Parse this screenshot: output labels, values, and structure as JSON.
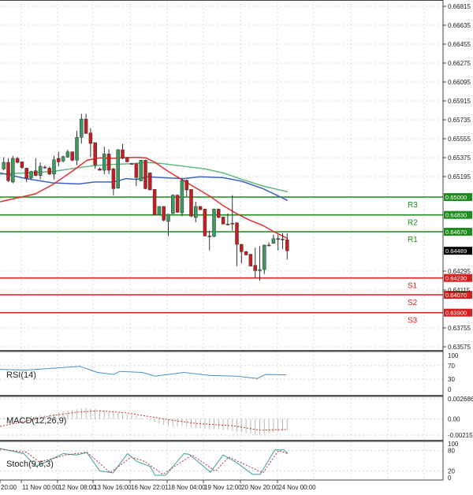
{
  "chart_data": {
    "type": "candlestick",
    "price_axis": {
      "range": [
        0.63575,
        0.66815
      ],
      "ticks": [
        "0.66815",
        "0.66635",
        "0.66455",
        "0.66275",
        "0.66095",
        "0.65915",
        "0.65735",
        "0.65555",
        "0.65375",
        "0.65195",
        "0.64295",
        "0.64115",
        "0.63755",
        "0.63575"
      ]
    },
    "time_labels": [
      "20:00",
      "11 Nov 00:00",
      "12 Nov 08:00",
      "13 Nov 16:00",
      "16 Nov 22:01",
      "18 Nov 04:00",
      "19 Nov 12:00",
      "20 Nov 20:00",
      "24 Nov 00:00"
    ],
    "current_price": {
      "value": 0.64489,
      "label": "0.64489"
    },
    "colors": {
      "up": "#3c9a5f",
      "down": "#c41e1e",
      "ma_fast": "#e03030",
      "ma_mid": "#60b880",
      "ma_slow": "#4060c0",
      "resistance": "#1e8c1e",
      "support": "#d42020"
    },
    "levels": [
      {
        "name": "R3",
        "value": 0.65,
        "label": "0.65000",
        "kind": "resistance"
      },
      {
        "name": "R2",
        "value": 0.6483,
        "label": "0.64830",
        "kind": "resistance"
      },
      {
        "name": "R1",
        "value": 0.6467,
        "label": "0.64670",
        "kind": "resistance"
      },
      {
        "name": "S1",
        "value": 0.6423,
        "label": "0.64230",
        "kind": "support"
      },
      {
        "name": "S2",
        "value": 0.6407,
        "label": "0.64070",
        "kind": "support"
      },
      {
        "name": "S3",
        "value": 0.639,
        "label": "0.63900",
        "kind": "support"
      }
    ],
    "candles": [
      [
        0.65268,
        0.6538,
        0.65255,
        0.6533
      ],
      [
        0.6533,
        0.65368,
        0.65143,
        0.65155
      ],
      [
        0.65143,
        0.65393,
        0.6513,
        0.65368
      ],
      [
        0.65368,
        0.6538,
        0.6532,
        0.6533
      ],
      [
        0.65335,
        0.6534,
        0.6527,
        0.6528
      ],
      [
        0.65275,
        0.6528,
        0.65143,
        0.6518
      ],
      [
        0.6518,
        0.6525,
        0.6517,
        0.65243
      ],
      [
        0.6525,
        0.65368,
        0.652,
        0.65205
      ],
      [
        0.65205,
        0.6533,
        0.65168,
        0.65293
      ],
      [
        0.65285,
        0.653,
        0.6527,
        0.65283
      ],
      [
        0.65275,
        0.6529,
        0.6521,
        0.65218
      ],
      [
        0.65218,
        0.65393,
        0.65168,
        0.65355
      ],
      [
        0.65368,
        0.6543,
        0.65293,
        0.65335
      ],
      [
        0.65343,
        0.65393,
        0.6533,
        0.65385
      ],
      [
        0.6538,
        0.6545,
        0.65375,
        0.6543
      ],
      [
        0.6543,
        0.65435,
        0.6534,
        0.6535
      ],
      [
        0.6535,
        0.6563,
        0.65305,
        0.65568
      ],
      [
        0.65568,
        0.65792,
        0.6551,
        0.65742
      ],
      [
        0.65742,
        0.65792,
        0.656,
        0.65605
      ],
      [
        0.6561,
        0.65655,
        0.6538,
        0.6551
      ],
      [
        0.65518,
        0.65518,
        0.65268,
        0.65305
      ],
      [
        0.65268,
        0.6528,
        0.6525,
        0.65255
      ],
      [
        0.65255,
        0.6548,
        0.65218,
        0.6541
      ],
      [
        0.6541,
        0.65455,
        0.65218,
        0.65255
      ],
      [
        0.65268,
        0.6528,
        0.65018,
        0.6508
      ],
      [
        0.65085,
        0.65455,
        0.6508,
        0.6545
      ],
      [
        0.6545,
        0.65505,
        0.6536,
        0.65368
      ],
      [
        0.65375,
        0.6538,
        0.6533,
        0.65335
      ],
      [
        0.65318,
        0.65325,
        0.6531,
        0.65316
      ],
      [
        0.65318,
        0.6532,
        0.65105,
        0.65185
      ],
      [
        0.65155,
        0.65355,
        0.6515,
        0.6535
      ],
      [
        0.6535,
        0.65355,
        0.65075,
        0.6508
      ],
      [
        0.6523,
        0.65235,
        0.65065,
        0.65068
      ],
      [
        0.65073,
        0.65075,
        0.64825,
        0.6483
      ],
      [
        0.6483,
        0.64915,
        0.64825,
        0.6491
      ],
      [
        0.6491,
        0.64915,
        0.64768,
        0.6478
      ],
      [
        0.64768,
        0.6484,
        0.6463,
        0.64835
      ],
      [
        0.64843,
        0.65025,
        0.6484,
        0.65018
      ],
      [
        0.65018,
        0.65025,
        0.6485,
        0.64855
      ],
      [
        0.6485,
        0.6518,
        0.64818,
        0.6516
      ],
      [
        0.6516,
        0.65165,
        0.65005,
        0.65068
      ],
      [
        0.65073,
        0.65075,
        0.6481,
        0.64818
      ],
      [
        0.64805,
        0.64955,
        0.6476,
        0.6491
      ],
      [
        0.6491,
        0.64915,
        0.64875,
        0.6488
      ],
      [
        0.64885,
        0.6489,
        0.64625,
        0.6463
      ],
      [
        0.6463,
        0.6468,
        0.64493,
        0.64628
      ],
      [
        0.64625,
        0.6489,
        0.64618,
        0.64885
      ],
      [
        0.64885,
        0.6489,
        0.648,
        0.64805
      ],
      [
        0.6481,
        0.64815,
        0.6474,
        0.64743
      ],
      [
        0.64743,
        0.64843,
        0.6473,
        0.64741
      ],
      [
        0.6475,
        0.65018,
        0.6468,
        0.64748
      ],
      [
        0.64755,
        0.6476,
        0.64343,
        0.6455
      ],
      [
        0.6455,
        0.64555,
        0.64368,
        0.6448
      ],
      [
        0.6448,
        0.64485,
        0.64445,
        0.6445
      ],
      [
        0.64455,
        0.6446,
        0.6434,
        0.64343
      ],
      [
        0.6435,
        0.64518,
        0.6423,
        0.643
      ],
      [
        0.643,
        0.6453,
        0.64205,
        0.6431
      ],
      [
        0.6431,
        0.64548,
        0.64268,
        0.64543
      ],
      [
        0.64543,
        0.64568,
        0.6453,
        0.64541
      ],
      [
        0.6456,
        0.64643,
        0.64555,
        0.64605
      ],
      [
        0.64605,
        0.64643,
        0.64493,
        0.64603
      ],
      [
        0.646,
        0.64655,
        0.64505,
        0.64598
      ],
      [
        0.64593,
        0.64655,
        0.64405,
        0.64489
      ]
    ],
    "moving_averages": {
      "fast": [
        [
          -0.8,
          0.64955
        ],
        [
          6.9,
          0.6503
        ],
        [
          10.7,
          0.65118
        ],
        [
          15.3,
          0.65255
        ],
        [
          18.2,
          0.6535
        ],
        [
          21,
          0.65373
        ],
        [
          23.9,
          0.65368
        ],
        [
          26.2,
          0.65375
        ],
        [
          29.1,
          0.65378
        ],
        [
          31.1,
          0.65373
        ],
        [
          33.1,
          0.6533
        ],
        [
          36,
          0.65243
        ],
        [
          39.4,
          0.65155
        ],
        [
          42.3,
          0.6508
        ],
        [
          45.2,
          0.65005
        ],
        [
          48,
          0.64918
        ],
        [
          50.9,
          0.64843
        ],
        [
          53.8,
          0.6478
        ],
        [
          56.7,
          0.6473
        ],
        [
          59,
          0.64673
        ],
        [
          62.1,
          0.64605
        ]
      ],
      "mid": [
        [
          -0.8,
          0.65218
        ],
        [
          4.9,
          0.6523
        ],
        [
          10.7,
          0.65243
        ],
        [
          16.4,
          0.6528
        ],
        [
          19.9,
          0.653
        ],
        [
          23.9,
          0.6531
        ],
        [
          27.9,
          0.65318
        ],
        [
          31.4,
          0.6533
        ],
        [
          34.8,
          0.65318
        ],
        [
          39.4,
          0.65293
        ],
        [
          44,
          0.65268
        ],
        [
          48,
          0.6523
        ],
        [
          52.1,
          0.65168
        ],
        [
          56.7,
          0.65105
        ],
        [
          62.1,
          0.6505
        ]
      ],
      "slow": [
        [
          -0.8,
          0.6523
        ],
        [
          4.9,
          0.65175
        ],
        [
          10.7,
          0.65135
        ],
        [
          16.4,
          0.65125
        ],
        [
          19.9,
          0.65143
        ],
        [
          23.9,
          0.65143
        ],
        [
          26.8,
          0.65175
        ],
        [
          29.1,
          0.65168
        ],
        [
          31.4,
          0.65193
        ],
        [
          34.8,
          0.65185
        ],
        [
          39.4,
          0.65175
        ],
        [
          42.9,
          0.65193
        ],
        [
          48,
          0.65185
        ],
        [
          52.1,
          0.6515
        ],
        [
          56.7,
          0.6508
        ],
        [
          62.1,
          0.64968
        ]
      ]
    },
    "rsi": {
      "label": "RSI(14)",
      "ticks": [
        "100",
        "70",
        "30",
        "0"
      ],
      "values": [
        [
          -0.8,
          59
        ],
        [
          5,
          57
        ],
        [
          16.7,
          68
        ],
        [
          20.5,
          50
        ],
        [
          24,
          44
        ],
        [
          25.4,
          53
        ],
        [
          30.3,
          50
        ],
        [
          33.1,
          39
        ],
        [
          39.4,
          50
        ],
        [
          45.2,
          41
        ],
        [
          51,
          39
        ],
        [
          55.5,
          32
        ],
        [
          57.2,
          44
        ],
        [
          61.8,
          43
        ]
      ]
    },
    "macd": {
      "label": "MACD(12,26,9)",
      "ticks": [
        "0.002686",
        "0.00",
        "-0.002157"
      ],
      "range": [
        -0.002157,
        0.002686
      ],
      "histogram": [
        0.0002,
        0.0002,
        0.0003,
        0.0003,
        0.0003,
        0.0003,
        0.0004,
        0.0004,
        0.0005,
        0.0005,
        0.0006,
        0.0007,
        0.0009,
        0.001,
        0.0011,
        0.0012,
        0.0013,
        0.0014,
        0.0015,
        0.0014,
        0.0013,
        0.0012,
        0.0011,
        0.001,
        0.0009,
        0.0008,
        0.0007,
        0.0006,
        0.0005,
        0.0004,
        0.0002,
        0.0,
        -0.0002,
        -0.0004,
        -0.0006,
        -0.0008,
        -0.0009,
        -0.001,
        -0.001,
        -0.0009,
        -0.001,
        -0.0011,
        -0.0012,
        -0.0012,
        -0.0013,
        -0.0014,
        -0.0014,
        -0.0014,
        -0.0015,
        -0.0015,
        -0.0016,
        -0.0017,
        -0.0018,
        -0.0019,
        -0.002,
        -0.0021,
        -0.0021,
        -0.002,
        -0.0019,
        -0.0018,
        -0.0017,
        -0.0016,
        -0.0015
      ],
      "signal": [
        [
          -0.8,
          -0.001
        ],
        [
          10,
          0.0004
        ],
        [
          16,
          0.0009
        ],
        [
          21,
          0.0011
        ],
        [
          27,
          0.0008
        ],
        [
          35,
          0.0
        ],
        [
          42,
          -0.0006
        ],
        [
          50,
          -0.0009
        ],
        [
          56,
          -0.0015
        ],
        [
          62,
          -0.0014
        ]
      ]
    },
    "stochastic": {
      "label": "Stoch(9,6,3)",
      "ticks": [
        "100",
        "80",
        "20",
        "0"
      ],
      "main": [
        [
          -0.8,
          86
        ],
        [
          4.4,
          71
        ],
        [
          7,
          33
        ],
        [
          9.5,
          48
        ],
        [
          13,
          71
        ],
        [
          15.9,
          67
        ],
        [
          18.2,
          74
        ],
        [
          21,
          20
        ],
        [
          23.9,
          14
        ],
        [
          27.1,
          71
        ],
        [
          29.1,
          48
        ],
        [
          32,
          33
        ],
        [
          33.1,
          7
        ],
        [
          35.4,
          7
        ],
        [
          39.4,
          71
        ],
        [
          40.6,
          69
        ],
        [
          45.2,
          16
        ],
        [
          48,
          67
        ],
        [
          50.9,
          45
        ],
        [
          54.4,
          10
        ],
        [
          56.1,
          10
        ],
        [
          59.3,
          82
        ],
        [
          61.3,
          82
        ],
        [
          62.1,
          71
        ]
      ],
      "signal": [
        [
          -0.8,
          84
        ],
        [
          5,
          75
        ],
        [
          7.8,
          46
        ],
        [
          13.6,
          67
        ],
        [
          18.2,
          75
        ],
        [
          23.3,
          15
        ],
        [
          27.9,
          61
        ],
        [
          30.8,
          48
        ],
        [
          34.8,
          10
        ],
        [
          41.2,
          67
        ],
        [
          46.3,
          19
        ],
        [
          49.2,
          61
        ],
        [
          56.7,
          14
        ],
        [
          60.1,
          80
        ],
        [
          62.1,
          71
        ]
      ]
    }
  }
}
